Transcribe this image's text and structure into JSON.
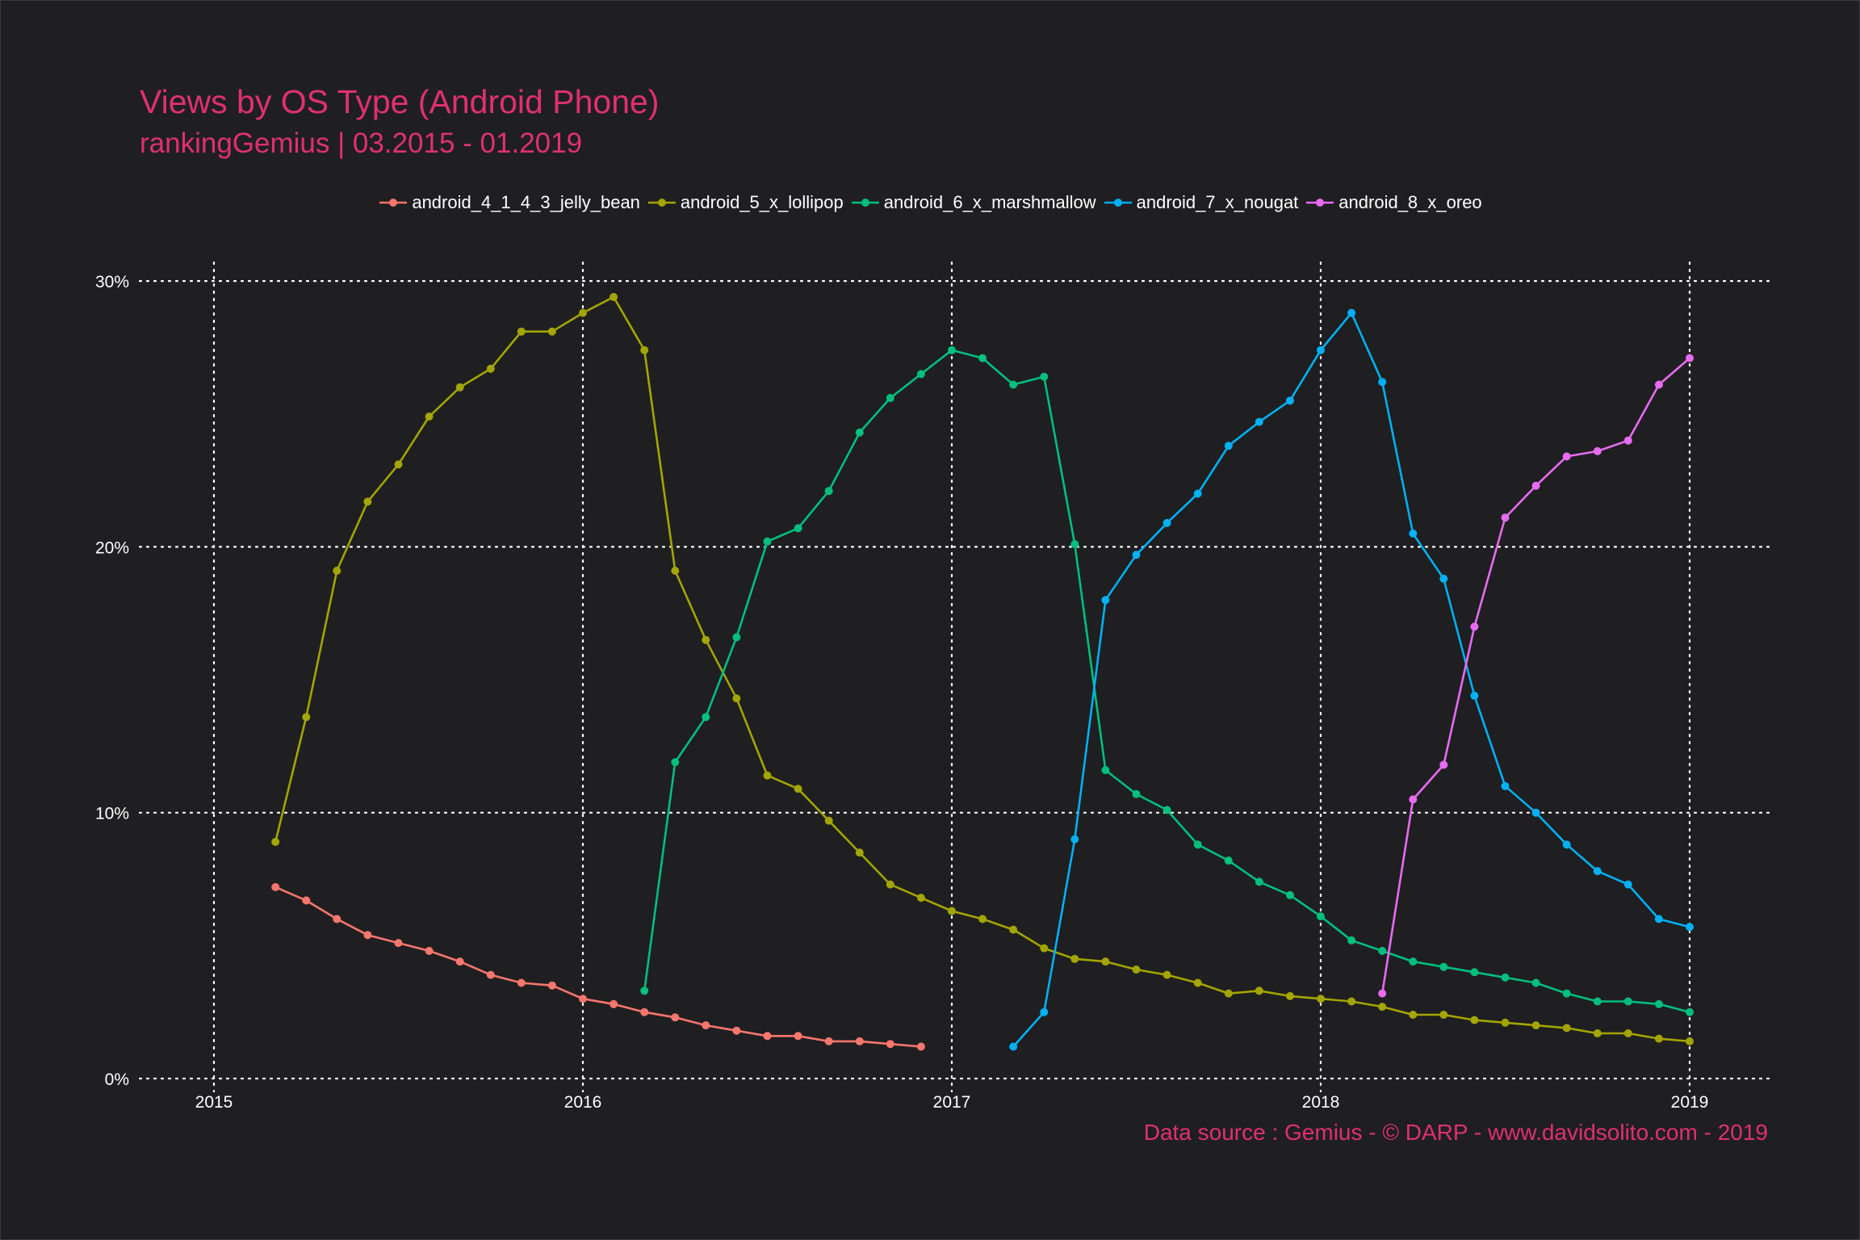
{
  "chart_data": {
    "type": "line",
    "title": "Views by OS Type (Android Phone)",
    "subtitle": "rankingGemius | 03.2015 - 01.2019",
    "caption": "Data source : Gemius - © DARP - www.davidsolito.com - 2019",
    "xlabel": "",
    "ylabel": "",
    "x_ticks": [
      "2015",
      "2016",
      "2017",
      "2018",
      "2019"
    ],
    "y_ticks": [
      "0%",
      "10%",
      "20%",
      "30%"
    ],
    "xlim": [
      "2014-10",
      "2019-03"
    ],
    "ylim": [
      0,
      30
    ],
    "grid": true,
    "legend_position": "top",
    "series": [
      {
        "name": "android_4_1_4_3_jelly_bean",
        "color": "#f8766d",
        "x": [
          "2015-03",
          "2015-04",
          "2015-05",
          "2015-06",
          "2015-07",
          "2015-08",
          "2015-09",
          "2015-10",
          "2015-11",
          "2015-12",
          "2016-01",
          "2016-02",
          "2016-03",
          "2016-04",
          "2016-05",
          "2016-06",
          "2016-07",
          "2016-08",
          "2016-09",
          "2016-10",
          "2016-11",
          "2016-12"
        ],
        "values": [
          7.2,
          6.7,
          6.0,
          5.4,
          5.1,
          4.8,
          4.4,
          3.9,
          3.6,
          3.5,
          3.0,
          2.8,
          2.5,
          2.3,
          2.0,
          1.8,
          1.6,
          1.6,
          1.4,
          1.4,
          1.3,
          1.2
        ]
      },
      {
        "name": "android_5_x_lollipop",
        "color": "#a3a500",
        "x": [
          "2015-03",
          "2015-04",
          "2015-05",
          "2015-06",
          "2015-07",
          "2015-08",
          "2015-09",
          "2015-10",
          "2015-11",
          "2015-12",
          "2016-01",
          "2016-02",
          "2016-03",
          "2016-04",
          "2016-05",
          "2016-06",
          "2016-07",
          "2016-08",
          "2016-09",
          "2016-10",
          "2016-11",
          "2016-12",
          "2017-01",
          "2017-02",
          "2017-03",
          "2017-04",
          "2017-05",
          "2017-06",
          "2017-07",
          "2017-08",
          "2017-09",
          "2017-10",
          "2017-11",
          "2017-12",
          "2018-01",
          "2018-02",
          "2018-03",
          "2018-04",
          "2018-05",
          "2018-06",
          "2018-07",
          "2018-08",
          "2018-09",
          "2018-10",
          "2018-11",
          "2018-12",
          "2019-01"
        ],
        "values": [
          8.9,
          13.6,
          19.1,
          21.7,
          23.1,
          24.9,
          26.0,
          26.7,
          28.1,
          28.1,
          28.8,
          29.4,
          27.4,
          19.1,
          16.5,
          14.3,
          11.4,
          10.9,
          9.7,
          8.5,
          7.3,
          6.8,
          6.3,
          6.0,
          5.6,
          4.9,
          4.5,
          4.4,
          4.1,
          3.9,
          3.6,
          3.2,
          3.3,
          3.1,
          3.0,
          2.9,
          2.7,
          2.4,
          2.4,
          2.2,
          2.1,
          2.0,
          1.9,
          1.7,
          1.7,
          1.5,
          1.4
        ]
      },
      {
        "name": "android_6_x_marshmallow",
        "color": "#00bf7d",
        "x": [
          "2016-03",
          "2016-04",
          "2016-05",
          "2016-06",
          "2016-07",
          "2016-08",
          "2016-09",
          "2016-10",
          "2016-11",
          "2016-12",
          "2017-01",
          "2017-02",
          "2017-03",
          "2017-04",
          "2017-05",
          "2017-06",
          "2017-07",
          "2017-08",
          "2017-09",
          "2017-10",
          "2017-11",
          "2017-12",
          "2018-01",
          "2018-02",
          "2018-03",
          "2018-04",
          "2018-05",
          "2018-06",
          "2018-07",
          "2018-08",
          "2018-09",
          "2018-10",
          "2018-11",
          "2018-12",
          "2019-01"
        ],
        "values": [
          3.3,
          11.9,
          13.6,
          16.6,
          20.2,
          20.7,
          22.1,
          24.3,
          25.6,
          26.5,
          27.4,
          27.1,
          26.1,
          26.4,
          20.1,
          11.6,
          10.7,
          10.1,
          8.8,
          8.2,
          7.4,
          6.9,
          6.1,
          5.2,
          4.8,
          4.4,
          4.2,
          4.0,
          3.8,
          3.6,
          3.2,
          2.9,
          2.9,
          2.8,
          2.5
        ]
      },
      {
        "name": "android_7_x_nougat",
        "color": "#00b0f6",
        "x": [
          "2017-03",
          "2017-04",
          "2017-05",
          "2017-06",
          "2017-07",
          "2017-08",
          "2017-09",
          "2017-10",
          "2017-11",
          "2017-12",
          "2018-01",
          "2018-02",
          "2018-03",
          "2018-04",
          "2018-05",
          "2018-06",
          "2018-07",
          "2018-08",
          "2018-09",
          "2018-10",
          "2018-11",
          "2018-12",
          "2019-01"
        ],
        "values": [
          1.2,
          2.5,
          9.0,
          18.0,
          19.7,
          20.9,
          22.0,
          23.8,
          24.7,
          25.5,
          27.4,
          28.8,
          26.2,
          20.5,
          18.8,
          14.4,
          11.0,
          10.0,
          8.8,
          7.8,
          7.3,
          6.0,
          5.7
        ]
      },
      {
        "name": "android_8_x_oreo",
        "color": "#e76bf3",
        "x": [
          "2018-03",
          "2018-04",
          "2018-05",
          "2018-06",
          "2018-07",
          "2018-08",
          "2018-09",
          "2018-10",
          "2018-11",
          "2018-12",
          "2019-01"
        ],
        "values": [
          3.2,
          10.5,
          11.8,
          17.0,
          21.1,
          22.3,
          23.4,
          23.6,
          24.0,
          26.1,
          27.1
        ]
      }
    ]
  }
}
